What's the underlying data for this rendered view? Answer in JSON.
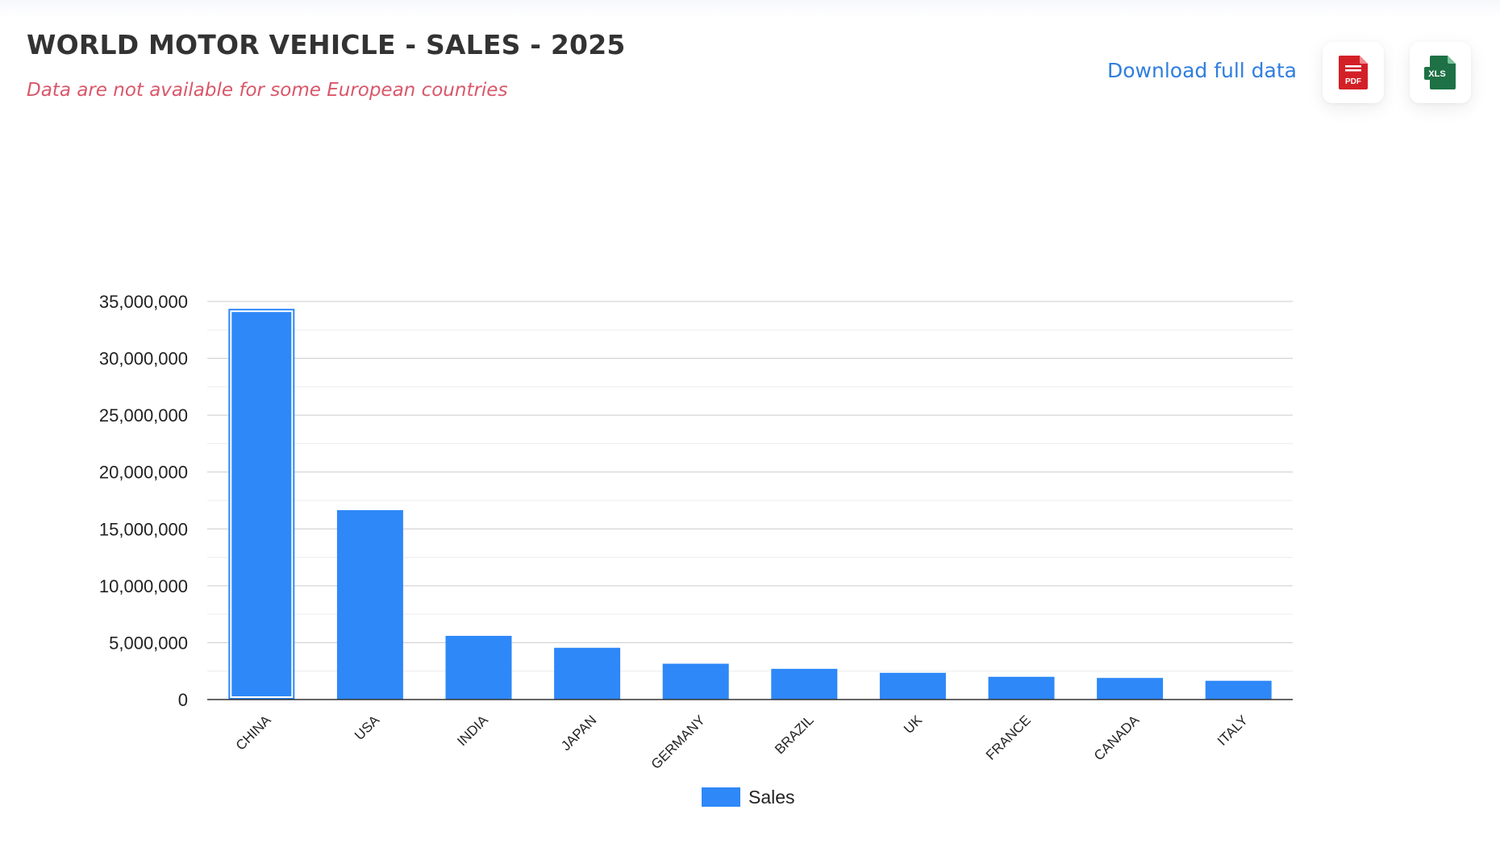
{
  "header": {
    "title": "WORLD MOTOR VEHICLE - SALES - 2025",
    "subtitle": "Data are not available for some European countries",
    "download_label": "Download full data",
    "pdf_icon": "pdf-file-icon",
    "xls_icon": "xls-file-icon",
    "pdf_badge": "PDF",
    "xls_badge": "XLS"
  },
  "colors": {
    "bar": "#2e88f8",
    "title": "#333333",
    "subtitle": "#d9576a",
    "link": "#2f7ee0",
    "pdf": "#d32027",
    "xls": "#1e7145"
  },
  "chart_data": {
    "type": "bar",
    "title": "",
    "xlabel": "",
    "ylabel": "",
    "categories": [
      "CHINA",
      "USA",
      "INDIA",
      "JAPAN",
      "GERMANY",
      "BRAZIL",
      "UK",
      "FRANCE",
      "CANADA",
      "ITALY"
    ],
    "series": [
      {
        "name": "Sales",
        "values": [
          34350000,
          16650000,
          5600000,
          4550000,
          3150000,
          2700000,
          2350000,
          2000000,
          1900000,
          1650000
        ]
      }
    ],
    "ylim": [
      0,
      35000000
    ],
    "y_ticks": [
      0,
      5000000,
      10000000,
      15000000,
      20000000,
      25000000,
      30000000,
      35000000
    ],
    "y_tick_labels": [
      "0",
      "5,000,000",
      "10,000,000",
      "15,000,000",
      "20,000,000",
      "25,000,000",
      "30,000,000",
      "35,000,000"
    ],
    "grid": true,
    "minor_grid": true,
    "legend": "bottom",
    "highlighted_category": "CHINA"
  }
}
